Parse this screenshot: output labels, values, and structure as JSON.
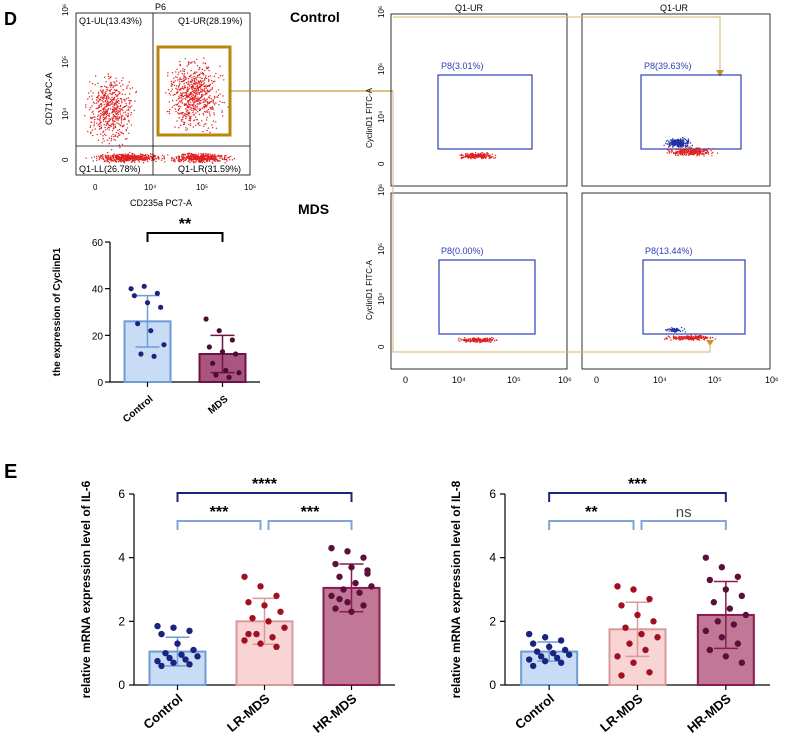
{
  "panel_d": {
    "letter": "D",
    "row_control_label": "Control",
    "row_mds_label": "MDS",
    "density_plot": {
      "title": "P6",
      "quadrants": [
        "Q1-UL(13.43%)",
        "Q1-UR(28.19%)",
        "Q1-LL(26.78%)",
        "Q1-LR(31.59%)"
      ],
      "x_label": "CD235a PC7-A",
      "y_label": "CD71 APC-A",
      "x_ticks": [
        "0",
        "10⁴",
        "10⁵",
        "10⁶"
      ],
      "y_ticks": [
        "10⁶",
        "10⁵",
        "10⁴",
        "0"
      ]
    },
    "facs_plots": [
      {
        "title": "Q1-UR",
        "gate": "P8(3.01%)"
      },
      {
        "title": "Q1-UR",
        "gate": "P8(39.63%)"
      },
      {
        "title": "",
        "gate": "P8(0.00%)"
      },
      {
        "title": "",
        "gate": "P8(13.44%)"
      }
    ],
    "facs_y_label": "CyclinD1 FITC-A",
    "facs_y_ticks": [
      "10⁶",
      "10⁵",
      "10⁴",
      "0"
    ],
    "facs_x_ticks": [
      "0",
      "10⁴",
      "10⁵",
      "10⁶"
    ]
  },
  "panel_e": {
    "letter": "E"
  },
  "colors": {
    "control_fill": "#c9dcf5",
    "control_edge": "#6f9bd6",
    "control_dot": "#1a237e",
    "lr_fill": "#f9d4d4",
    "lr_edge": "#d99a9a",
    "lr_dot": "#a01020",
    "hr_fill": "#c07896",
    "hr_edge": "#8a1c4e",
    "hr_dot": "#5c0f3a",
    "mds_fill": "#a9557f",
    "mds_edge": "#6d1447",
    "mds_dot": "#4a0c34",
    "gate_gold": "#b8860b",
    "gate_blue": "#2c3fb8",
    "sig_dark": "#1a237e",
    "sig_light": "#7fa6d8"
  },
  "chart_data": [
    {
      "type": "bar",
      "title": "",
      "categories": [
        "Control",
        "MDS"
      ],
      "values": [
        26,
        12
      ],
      "errors": [
        11,
        8
      ],
      "points": [
        [
          40,
          41,
          38,
          37,
          34,
          32,
          25,
          22,
          16,
          12,
          11
        ],
        [
          27,
          22,
          18,
          15,
          13,
          12,
          8,
          5,
          4,
          3,
          2
        ]
      ],
      "xlabel": "",
      "ylabel": "the expression of CyclinD1",
      "ylim": [
        0,
        60
      ],
      "yticks": [
        "0",
        "20",
        "40",
        "60"
      ],
      "significance": [
        {
          "from": 0,
          "to": 1,
          "label": "**"
        }
      ]
    },
    {
      "type": "bar",
      "title": "",
      "categories": [
        "Control",
        "LR-MDS",
        "HR-MDS"
      ],
      "values": [
        1.05,
        2.0,
        3.05
      ],
      "errors": [
        0.45,
        0.72,
        0.75
      ],
      "points": [
        [
          1.85,
          1.8,
          1.7,
          1.6,
          1.3,
          1.1,
          1.0,
          0.95,
          0.9,
          0.85,
          0.8,
          0.75,
          0.7,
          0.65,
          0.6
        ],
        [
          3.4,
          3.1,
          2.8,
          2.6,
          2.5,
          2.3,
          2.1,
          2.0,
          1.8,
          1.6,
          1.5,
          1.4,
          1.3,
          1.2,
          1.6
        ],
        [
          4.3,
          4.2,
          4.0,
          3.8,
          3.7,
          3.5,
          3.4,
          3.2,
          3.1,
          3.0,
          2.9,
          2.8,
          2.6,
          2.5,
          2.4,
          2.3,
          3.6,
          2.7
        ]
      ],
      "xlabel": "",
      "ylabel": "relative mRNA expression level of IL-6",
      "ylim": [
        0,
        6
      ],
      "yticks": [
        "0",
        "2",
        "4",
        "6"
      ],
      "significance": [
        {
          "from": 0,
          "to": 2,
          "label": "****",
          "level": 2
        },
        {
          "from": 0,
          "to": 1,
          "label": "***",
          "level": 1
        },
        {
          "from": 1,
          "to": 2,
          "label": "***",
          "level": 1
        }
      ]
    },
    {
      "type": "bar",
      "title": "",
      "categories": [
        "Control",
        "LR-MDS",
        "HR-MDS"
      ],
      "values": [
        1.05,
        1.75,
        2.2
      ],
      "errors": [
        0.3,
        0.85,
        1.05
      ],
      "points": [
        [
          1.6,
          1.5,
          1.4,
          1.3,
          1.2,
          1.1,
          1.05,
          1.0,
          0.95,
          0.9,
          0.85,
          0.8,
          0.75,
          0.7,
          0.6
        ],
        [
          3.1,
          3.0,
          2.7,
          2.5,
          2.2,
          2.0,
          1.8,
          1.6,
          1.5,
          1.3,
          1.1,
          0.9,
          0.7,
          0.4,
          0.3
        ],
        [
          4.0,
          3.7,
          3.4,
          3.3,
          3.0,
          2.8,
          2.6,
          2.4,
          2.2,
          2.0,
          1.9,
          1.7,
          1.5,
          1.3,
          1.1,
          0.9,
          0.7
        ]
      ],
      "xlabel": "",
      "ylabel": "relative mRNA expression level of IL-8",
      "ylim": [
        0,
        6
      ],
      "yticks": [
        "0",
        "2",
        "4",
        "6"
      ],
      "significance": [
        {
          "from": 0,
          "to": 2,
          "label": "***",
          "level": 2
        },
        {
          "from": 0,
          "to": 1,
          "label": "**",
          "level": 1
        },
        {
          "from": 1,
          "to": 2,
          "label": "ns",
          "level": 1
        }
      ]
    }
  ]
}
